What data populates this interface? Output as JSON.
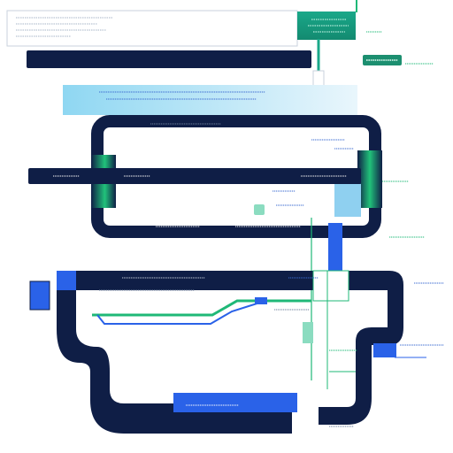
{
  "colors": {
    "navy": "#0f1e46",
    "green": "#1fb877",
    "teal": "#17a88a",
    "blue": "#2a62e8",
    "lightblue": "#8fd0f0",
    "bg": "#ffffff"
  },
  "icons": {
    "module_icon": "module-icon",
    "connector": "connector-icon"
  },
  "texts": {}
}
